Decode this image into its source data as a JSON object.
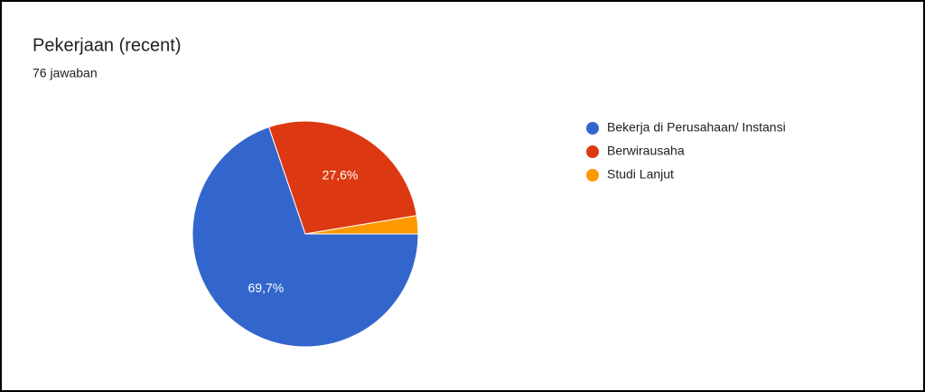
{
  "chart_data": {
    "type": "pie",
    "title": "Pekerjaan (recent)",
    "subtitle": "76 jawaban",
    "categories": [
      "Bekerja di Perusahaan/ Instansi",
      "Berwirausaha",
      "Studi Lanjut"
    ],
    "values": [
      69.7,
      27.6,
      2.6
    ],
    "value_labels": [
      "69,7%",
      "27,6%",
      null
    ],
    "colors": [
      "#3366cc",
      "#dc3912",
      "#ff9900"
    ],
    "legend": "right"
  }
}
